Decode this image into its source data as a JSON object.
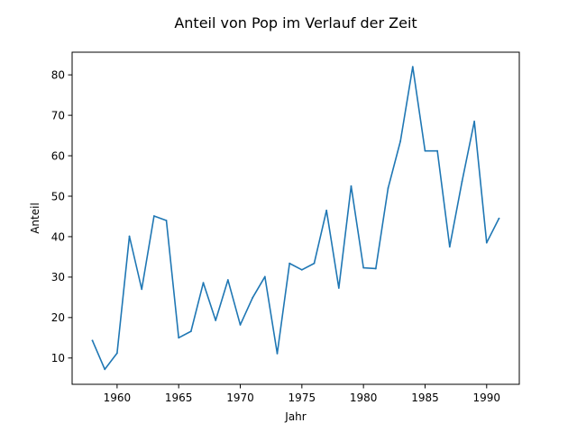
{
  "chart_data": {
    "type": "line",
    "title": "Anteil von Pop im Verlauf der Zeit",
    "xlabel": "Jahr",
    "ylabel": "Anteil",
    "xlim": [
      1956.35,
      1992.65
    ],
    "ylim": [
      3.5,
      85.6
    ],
    "xticks": [
      1960,
      1965,
      1970,
      1975,
      1980,
      1985,
      1990
    ],
    "yticks": [
      10,
      20,
      30,
      40,
      50,
      60,
      70,
      80
    ],
    "grid": false,
    "legend": "none",
    "series": [
      {
        "color": "#1f77b4",
        "x": [
          1958,
          1959,
          1960,
          1961,
          1962,
          1963,
          1964,
          1965,
          1966,
          1967,
          1968,
          1969,
          1970,
          1971,
          1972,
          1973,
          1974,
          1975,
          1976,
          1977,
          1978,
          1979,
          1980,
          1981,
          1982,
          1983,
          1984,
          1985,
          1986,
          1987,
          1988,
          1989,
          1990,
          1991
        ],
        "values": [
          14.3,
          7.2,
          11.2,
          40.1,
          27.0,
          45.1,
          44.0,
          15.0,
          16.6,
          28.6,
          19.3,
          29.3,
          18.2,
          24.9,
          30.1,
          11.1,
          33.4,
          31.8,
          33.4,
          46.5,
          27.3,
          52.5,
          32.3,
          32.1,
          52.0,
          63.6,
          82.0,
          61.2,
          61.2,
          37.5,
          53.6,
          68.5,
          38.5,
          44.5
        ]
      }
    ]
  }
}
